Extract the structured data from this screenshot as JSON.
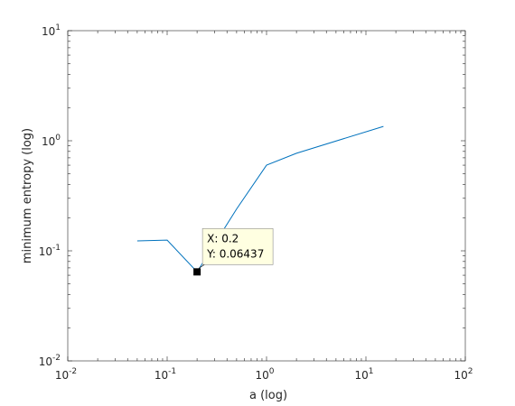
{
  "chart_data": {
    "type": "line",
    "xlabel": "a (log)",
    "ylabel": "minimum entropy (log)",
    "log_x": true,
    "log_y": true,
    "x": [
      0.05,
      0.1,
      0.2,
      0.5,
      1,
      2,
      15
    ],
    "series": [
      {
        "color": "#0072bd",
        "values": [
          0.123,
          0.125,
          0.06437,
          0.24,
          0.6,
          0.77,
          1.35
        ]
      }
    ],
    "xlim": [
      0.01,
      100
    ],
    "xticks": [
      {
        "value": 0.01,
        "label": "10",
        "exponent": "-2"
      },
      {
        "value": 0.1,
        "label": "10",
        "exponent": "-1"
      },
      {
        "value": 1,
        "label": "10",
        "exponent": "0"
      },
      {
        "value": 10,
        "label": "10",
        "exponent": "1"
      },
      {
        "value": 100,
        "label": "10",
        "exponent": "2"
      }
    ],
    "ylim": [
      0.01,
      10
    ],
    "yticks": [
      {
        "value": 0.01,
        "label": "10",
        "exponent": "-2"
      },
      {
        "value": 0.1,
        "label": "10",
        "exponent": "-1"
      },
      {
        "value": 1,
        "label": "10",
        "exponent": "0"
      },
      {
        "value": 10,
        "label": "10",
        "exponent": "1"
      }
    ],
    "datatip": {
      "x": 0.2,
      "y": 0.06437,
      "lines": [
        "X: 0.2",
        "Y: 0.06437"
      ]
    }
  }
}
